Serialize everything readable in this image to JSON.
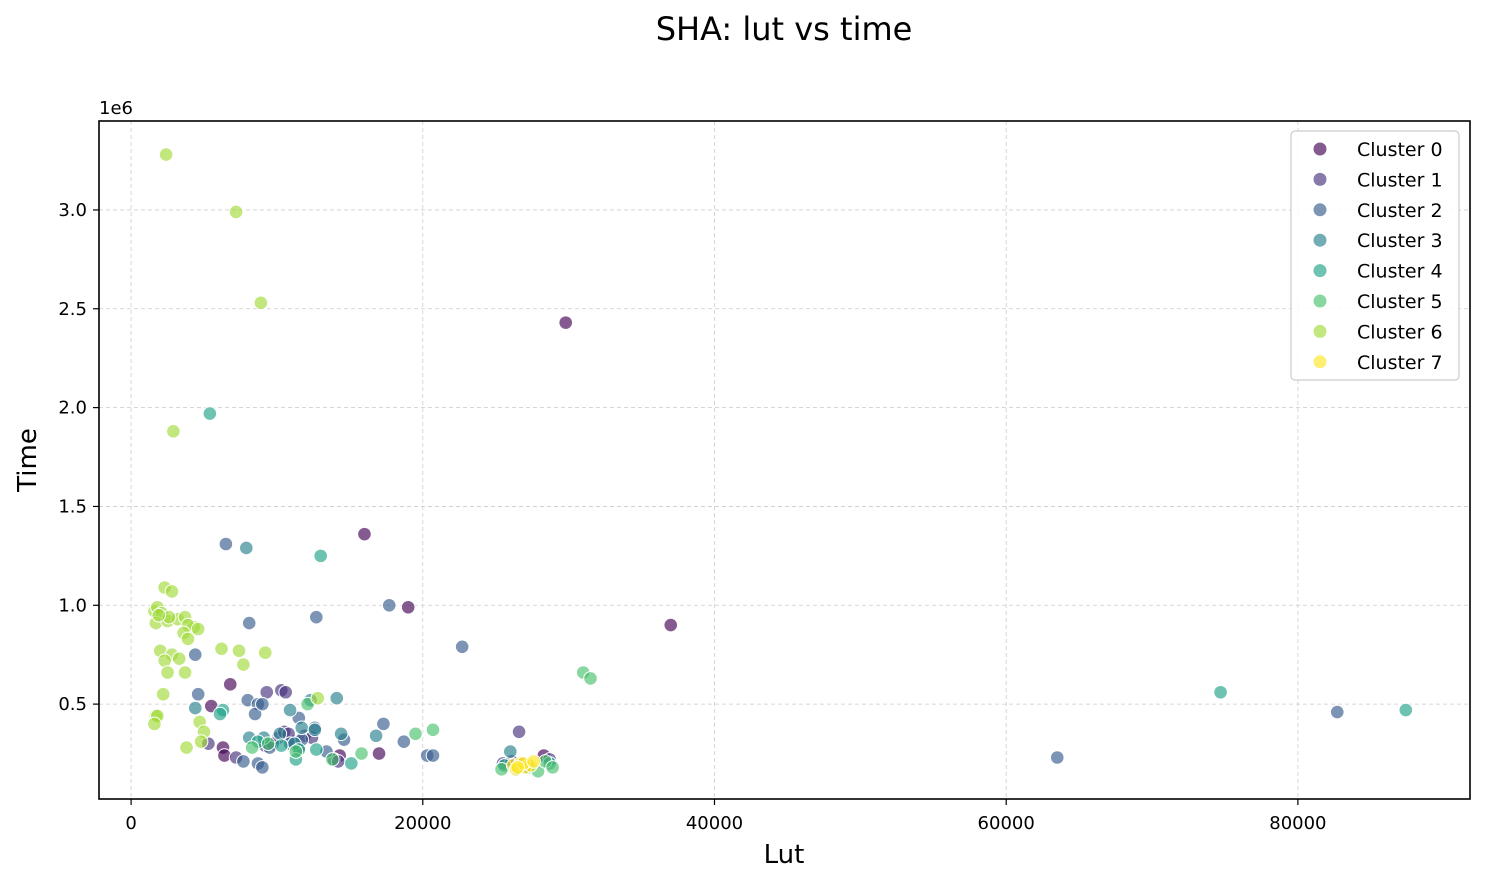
{
  "chart_data": {
    "type": "scatter",
    "title": "SHA: lut vs time",
    "xlabel": "Lut",
    "ylabel": "Time",
    "y_offset_label": "1e6",
    "xlim": [
      -2200,
      91800
    ],
    "ylim": [
      0.02,
      3.45
    ],
    "x_ticks": [
      0,
      20000,
      40000,
      60000,
      80000
    ],
    "x_tick_labels": [
      "0",
      "20000",
      "40000",
      "60000",
      "80000"
    ],
    "y_ticks": [
      0.5,
      1.0,
      1.5,
      2.0,
      2.5,
      3.0
    ],
    "y_tick_labels": [
      "0.5",
      "1.0",
      "1.5",
      "2.0",
      "2.5",
      "3.0"
    ],
    "grid": true,
    "legend_position": "top-right",
    "marker_alpha": 0.65,
    "series": [
      {
        "name": "Cluster 0",
        "color": "#440154",
        "x": [
          29800,
          16000,
          19000,
          37000,
          6800,
          5500,
          6300,
          6400,
          14300,
          17000,
          28300,
          26800
        ],
        "y": [
          2.43,
          1.36,
          0.99,
          0.9,
          0.6,
          0.49,
          0.28,
          0.24,
          0.24,
          0.25,
          0.24,
          0.2
        ]
      },
      {
        "name": "Cluster 1",
        "color": "#46327e",
        "x": [
          9300,
          10300,
          10600,
          26600,
          5300,
          7200,
          9200,
          10100,
          10500,
          11200,
          11900,
          12400,
          13900,
          9700,
          10800,
          11500,
          14200,
          25500,
          26100,
          27200,
          28700
        ],
        "y": [
          0.56,
          0.57,
          0.56,
          0.36,
          0.3,
          0.23,
          0.29,
          0.33,
          0.36,
          0.31,
          0.34,
          0.33,
          0.22,
          0.3,
          0.35,
          0.28,
          0.21,
          0.2,
          0.21,
          0.19,
          0.22
        ]
      },
      {
        "name": "Cluster 2",
        "color": "#365c8d",
        "x": [
          6500,
          12700,
          8100,
          17700,
          22700,
          4400,
          4600,
          8000,
          8700,
          8500,
          63500,
          82700,
          9000,
          11500,
          14600,
          17300,
          18700,
          20300,
          20700,
          8700,
          7700,
          10900,
          11700,
          12600,
          13400,
          9000,
          9500
        ],
        "y": [
          1.31,
          0.94,
          0.91,
          1.0,
          0.79,
          0.75,
          0.55,
          0.52,
          0.5,
          0.45,
          0.23,
          0.46,
          0.5,
          0.43,
          0.32,
          0.4,
          0.31,
          0.24,
          0.24,
          0.2,
          0.21,
          0.3,
          0.32,
          0.38,
          0.26,
          0.18,
          0.28
        ]
      },
      {
        "name": "Cluster 3",
        "color": "#277f8e",
        "x": [
          7900,
          14100,
          4400,
          10900,
          12300,
          11700,
          14400,
          16800,
          26000,
          9100,
          11200,
          12600,
          8100,
          10200
        ],
        "y": [
          1.29,
          0.53,
          0.48,
          0.47,
          0.52,
          0.38,
          0.35,
          0.34,
          0.26,
          0.33,
          0.3,
          0.37,
          0.33,
          0.35
        ]
      },
      {
        "name": "Cluster 4",
        "color": "#1fa187",
        "x": [
          5400,
          13000,
          74700,
          87400,
          6300,
          6100,
          11500,
          8700,
          10300,
          11300,
          12700,
          15100,
          27200,
          28700,
          25600
        ],
        "y": [
          1.97,
          1.25,
          0.56,
          0.47,
          0.47,
          0.45,
          0.27,
          0.31,
          0.29,
          0.22,
          0.27,
          0.2,
          0.18,
          0.2,
          0.19
        ]
      },
      {
        "name": "Cluster 5",
        "color": "#4ac16d",
        "x": [
          31000,
          31500,
          12100,
          19500,
          20700,
          8300,
          9400,
          11300,
          13800,
          15800,
          27900,
          28400,
          28900,
          26500,
          25400
        ],
        "y": [
          0.66,
          0.63,
          0.5,
          0.35,
          0.37,
          0.28,
          0.3,
          0.26,
          0.22,
          0.25,
          0.16,
          0.21,
          0.18,
          0.17,
          0.17
        ]
      },
      {
        "name": "Cluster 6",
        "color": "#a0da39",
        "x": [
          2400,
          7200,
          8900,
          2900,
          2300,
          2800,
          1600,
          1800,
          2100,
          1700,
          2500,
          3200,
          3700,
          4300,
          3900,
          3600,
          4600,
          2000,
          2800,
          3300,
          3900,
          6200,
          7400,
          9200,
          7700,
          2300,
          2500,
          3700,
          2200,
          1700,
          1800,
          1600,
          12800,
          4700,
          5000,
          3800,
          4800,
          2600,
          1900
        ],
        "y": [
          3.28,
          2.99,
          2.53,
          1.88,
          1.09,
          1.07,
          0.97,
          0.99,
          0.96,
          0.91,
          0.92,
          0.93,
          0.94,
          0.89,
          0.9,
          0.86,
          0.88,
          0.77,
          0.75,
          0.73,
          0.83,
          0.78,
          0.77,
          0.76,
          0.7,
          0.72,
          0.66,
          0.66,
          0.55,
          0.44,
          0.44,
          0.4,
          0.53,
          0.41,
          0.36,
          0.28,
          0.31,
          0.94,
          0.95
        ]
      },
      {
        "name": "Cluster 7",
        "color": "#fde725",
        "x": [
          26200,
          26700,
          27000,
          27400,
          26400,
          26900,
          27600,
          26500
        ],
        "y": [
          0.19,
          0.2,
          0.18,
          0.19,
          0.17,
          0.2,
          0.21,
          0.18
        ]
      }
    ]
  }
}
